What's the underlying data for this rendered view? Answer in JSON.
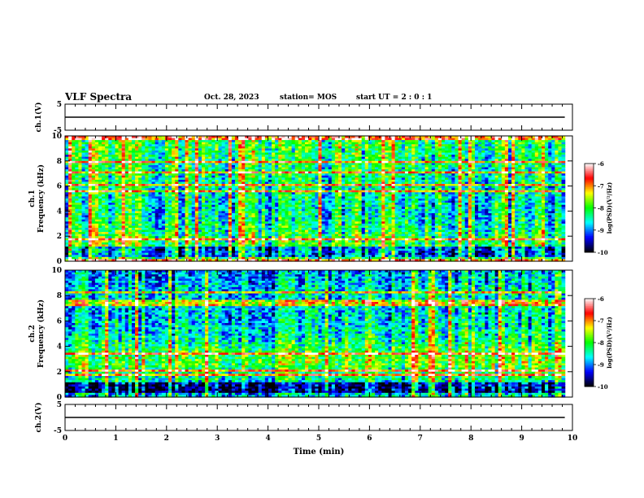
{
  "header": {
    "title": "VLF Spectra",
    "date": "Oct. 28, 2023",
    "station": "station= MOS",
    "start": "start  UT =   2 : 0  : 1"
  },
  "colors": {
    "colormap": [
      "#000000",
      "#0000ff",
      "#00ffff",
      "#00ff00",
      "#ffff00",
      "#ff0000",
      "#ffffff"
    ],
    "trace": "#000000"
  },
  "chart_data": [
    {
      "type": "line",
      "panel": "ch1-waveform",
      "ylabel": "ch.1(V)",
      "ylim": [
        -5,
        5
      ],
      "yticks": [
        "5",
        "-5"
      ],
      "xlim": [
        0,
        10
      ],
      "series": [
        {
          "x": [
            0,
            9.85
          ],
          "y": [
            0,
            0
          ]
        }
      ]
    },
    {
      "type": "heatmap",
      "panel": "ch1-spectrogram",
      "ylabel": "ch.1\nFrequency (kHz)",
      "ylim": [
        0,
        10
      ],
      "yticks": [
        "0",
        "2",
        "4",
        "6",
        "8",
        "10"
      ],
      "xlim": [
        0,
        10
      ],
      "data_extent_min": 9.85,
      "colorbar": {
        "label": "log(PSD)(V²/Hz)",
        "range": [
          -10,
          -6
        ],
        "ticks": [
          "-6",
          "-7",
          "-8",
          "-9",
          "-10"
        ]
      }
    },
    {
      "type": "heatmap",
      "panel": "ch2-spectrogram",
      "ylabel": "ch.2\nFrequency (kHz)",
      "ylim": [
        0,
        10
      ],
      "yticks": [
        "0",
        "2",
        "4",
        "6",
        "8",
        "10"
      ],
      "xlim": [
        0,
        10
      ],
      "data_extent_min": 9.85,
      "colorbar": {
        "label": "log(PSD)(V²/Hz)",
        "range": [
          -10,
          -6
        ],
        "ticks": [
          "-6",
          "-7",
          "-8",
          "-9",
          "-10"
        ]
      }
    },
    {
      "type": "line",
      "panel": "ch2-waveform",
      "ylabel": "ch.2(V)",
      "ylim": [
        -5,
        5
      ],
      "yticks": [
        "5",
        "-5"
      ],
      "xlim": [
        0,
        10
      ],
      "xlabel": "Time (min)",
      "xticks": [
        "0",
        "1",
        "2",
        "3",
        "4",
        "5",
        "6",
        "7",
        "8",
        "9",
        "10"
      ],
      "series": [
        {
          "x": [
            0,
            9.85
          ],
          "y": [
            0,
            0
          ]
        }
      ]
    }
  ]
}
